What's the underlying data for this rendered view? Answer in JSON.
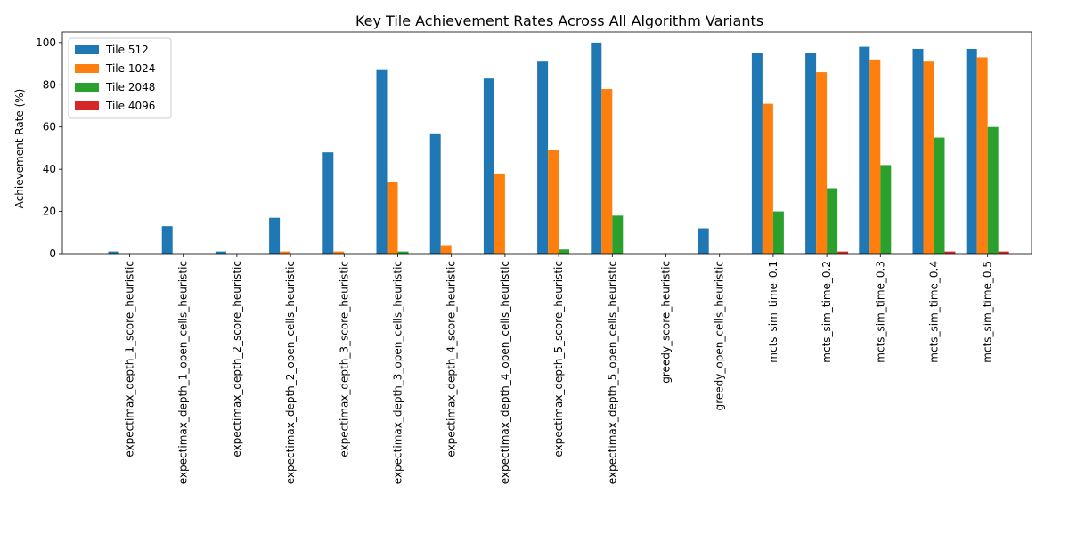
{
  "chart_data": {
    "type": "bar",
    "title": "Key Tile Achievement Rates Across All Algorithm Variants",
    "xlabel": "",
    "ylabel": "Achievement Rate (%)",
    "ylim": [
      0,
      105
    ],
    "yticks": [
      0,
      20,
      40,
      60,
      80,
      100
    ],
    "grid": false,
    "legend_position": "top-left",
    "categories": [
      "expectimax_depth_1_score_heuristic",
      "expectimax_depth_1_open_cells_heuristic",
      "expectimax_depth_2_score_heuristic",
      "expectimax_depth_2_open_cells_heuristic",
      "expectimax_depth_3_score_heuristic",
      "expectimax_depth_3_open_cells_heuristic",
      "expectimax_depth_4_score_heuristic",
      "expectimax_depth_4_open_cells_heuristic",
      "expectimax_depth_5_score_heuristic",
      "expectimax_depth_5_open_cells_heuristic",
      "greedy_score_heuristic",
      "greedy_open_cells_heuristic",
      "mcts_sim_time_0.1",
      "mcts_sim_time_0.2",
      "mcts_sim_time_0.3",
      "mcts_sim_time_0.4",
      "mcts_sim_time_0.5"
    ],
    "series": [
      {
        "name": "Tile 512",
        "color": "#1f77b4",
        "values": [
          1,
          13,
          1,
          17,
          48,
          87,
          57,
          83,
          91,
          100,
          0,
          12,
          95,
          95,
          98,
          97,
          97
        ]
      },
      {
        "name": "Tile 1024",
        "color": "#ff7f0e",
        "values": [
          0,
          0,
          0,
          1,
          1,
          34,
          4,
          38,
          49,
          78,
          0,
          0,
          71,
          86,
          92,
          91,
          93
        ]
      },
      {
        "name": "Tile 2048",
        "color": "#2ca02c",
        "values": [
          0,
          0,
          0,
          0,
          0,
          1,
          0,
          0,
          2,
          18,
          0,
          0,
          20,
          31,
          42,
          55,
          60
        ]
      },
      {
        "name": "Tile 4096",
        "color": "#d62728",
        "values": [
          0,
          0,
          0,
          0,
          0,
          0,
          0,
          0,
          0,
          0,
          0,
          0,
          0,
          1,
          0,
          1,
          1
        ]
      }
    ]
  }
}
